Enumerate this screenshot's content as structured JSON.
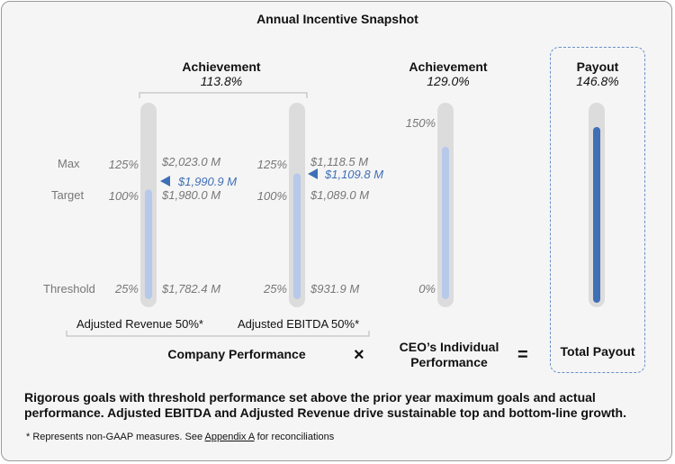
{
  "title": "Annual Incentive Snapshot",
  "company": {
    "header": "Achievement",
    "achievement": "113.8%",
    "label": "Company Performance",
    "levels": [
      "Max",
      "Target",
      "Threshold"
    ],
    "metrics": [
      {
        "name": "Adjusted Revenue 50%*",
        "pct_labels": [
          "125%",
          "100%",
          "25%"
        ],
        "values": [
          "$2,023.0 M",
          "$1,980.0 M",
          "$1,782.4 M"
        ],
        "actual_label": "$1,990.9 M"
      },
      {
        "name": "Adjusted EBITDA 50%*",
        "pct_labels": [
          "125%",
          "100%",
          "25%"
        ],
        "values": [
          "$1,118.5 M",
          "$1,089.0 M",
          "$931.9 M"
        ],
        "actual_label": "$1,109.8 M"
      }
    ]
  },
  "individual": {
    "header": "Achievement",
    "achievement": "129.0%",
    "label": "CEO’s Individual Performance",
    "pct_labels": [
      "150%",
      "0%"
    ]
  },
  "payout": {
    "header": "Payout",
    "value": "146.8%",
    "label": "Total Payout"
  },
  "operators": {
    "times": "×",
    "equals": "="
  },
  "summary": "Rigorous goals with threshold performance set above the prior year maximum goals and actual performance. Adjusted EBITDA and Adjusted Revenue drive sustainable top and bottom-line growth.",
  "footnote": {
    "prefix": "* Represents non-GAAP measures.  See ",
    "link": "Appendix A",
    "suffix": " for reconciliations"
  },
  "chart_data": {
    "type": "bar",
    "categories": [
      "Adjusted Revenue 50%*",
      "Adjusted EBITDA 50%*",
      "CEO’s Individual Performance",
      "Total Payout"
    ],
    "series": [
      {
        "values": [
          1990.9,
          1109.8,
          129.0,
          146.8
        ]
      }
    ],
    "gauges": [
      {
        "name": "Adjusted Revenue",
        "unit": "$M",
        "threshold": 1782.4,
        "target": 1980.0,
        "max": 2023.0,
        "actual": 1990.9,
        "fill_pct": 104.7
      },
      {
        "name": "Adjusted EBITDA",
        "unit": "$M",
        "threshold": 931.9,
        "target": 1089.0,
        "max": 1118.5,
        "actual": 1109.8,
        "fill_pct": 117.5
      },
      {
        "name": "CEO’s Individual Performance",
        "unit": "%",
        "min": 0,
        "max": 150,
        "actual": 129.0
      },
      {
        "name": "Total Payout",
        "unit": "%",
        "min": 0,
        "max": 150,
        "actual": 146.8
      }
    ],
    "colors": {
      "track": "#dcdcdc",
      "company_fill": "#b7c9ea",
      "actual": "#3f6fb5",
      "payout_fill": "#3f6fb5"
    },
    "title": "Annual Incentive Snapshot"
  }
}
